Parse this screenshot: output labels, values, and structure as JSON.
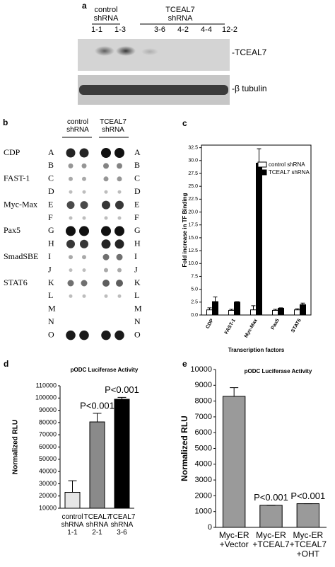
{
  "panel_a": {
    "label": "a",
    "control_group": "control\nshRNA",
    "tceal7_group": "TCEAL7\nshRNA",
    "lanes": [
      "1-1",
      "1-3",
      "3-6",
      "4-2",
      "4-4",
      "12-2"
    ],
    "blot_labels": [
      "-TCEAL7",
      "-β tubulin"
    ]
  },
  "panel_b": {
    "label": "b",
    "control_group": "control\nshRNA",
    "tceal7_group": "TCEAL7\nshRNA",
    "factors": [
      "CDP",
      "FAST-1",
      "Myc-Max",
      "Pax5",
      "SmadSBE",
      "STAT6"
    ],
    "rows": [
      "A",
      "B",
      "C",
      "D",
      "E",
      "F",
      "G",
      "H",
      "I",
      "J",
      "K",
      "L",
      "M",
      "N",
      "O"
    ]
  },
  "chart_data": [
    {
      "type": "bar",
      "panel": "c",
      "ylabel": "Fold increase in TF Binding",
      "xlabel": "Transcription factors",
      "categories": [
        "CDP",
        "FAST-1",
        "Myc-Max",
        "Pax5",
        "STAT6"
      ],
      "series": [
        {
          "name": "control shRNA",
          "color": "#ffffff",
          "values": [
            1.0,
            0.9,
            1.0,
            0.9,
            1.0
          ],
          "errors": [
            0.4,
            0.2,
            0.8,
            0.2,
            0.2
          ]
        },
        {
          "name": "TCEAL7 shRNA",
          "color": "#000000",
          "values": [
            2.6,
            2.5,
            29.5,
            1.3,
            2.0
          ],
          "errors": [
            0.9,
            0.1,
            2.8,
            0.1,
            0.3
          ]
        }
      ],
      "ylim": [
        0,
        33
      ],
      "yticks": [
        {
          "value": 0,
          "label": "0.0"
        },
        {
          "value": 2.5,
          "label": "2.5"
        },
        {
          "value": 5,
          "label": "5.0"
        },
        {
          "value": 7.5,
          "label": "7.5"
        },
        {
          "value": 10,
          "label": "10.0"
        },
        {
          "value": 12.5,
          "label": "12.5"
        },
        {
          "value": 15,
          "label": "15.0"
        },
        {
          "value": 17.5,
          "label": "17.5"
        },
        {
          "value": 20,
          "label": "20.0"
        },
        {
          "value": 22.5,
          "label": "22.5"
        },
        {
          "value": 25,
          "label": "25.0"
        },
        {
          "value": 27.5,
          "label": "27.5"
        },
        {
          "value": 30,
          "label": "30.0"
        },
        {
          "value": 32.5,
          "label": "32.5"
        }
      ],
      "legend": "top-right"
    },
    {
      "type": "bar",
      "panel": "d",
      "title": "pODC Luciferase Activity",
      "ylabel": "Normalized RLU",
      "categories": [
        "control\nshRNA\n1-1",
        "TCEAL7\nshRNA\n2-1",
        "TCEAL7\nshRNA\n3-6"
      ],
      "values": [
        23000,
        80500,
        99000
      ],
      "errors": [
        9500,
        7000,
        1500
      ],
      "colors": [
        "#e6e6e6",
        "#8a8a8a",
        "#000000"
      ],
      "annotations": [
        null,
        "P<0.001",
        "P<0.001"
      ],
      "ylim": [
        10000,
        110000
      ],
      "yticks": [
        10000,
        20000,
        30000,
        40000,
        50000,
        60000,
        70000,
        80000,
        90000,
        100000,
        110000
      ]
    },
    {
      "type": "bar",
      "panel": "e",
      "title": "pODC Luciferase Activity",
      "ylabel": "Normalized RLU",
      "categories": [
        "Myc-ER\n+Vector",
        "Myc-ER\n+TCEAL7",
        "Myc-ER\n+TCEAL7\n+OHT"
      ],
      "values": [
        8300,
        1400,
        1500
      ],
      "errors": [
        550,
        0,
        0
      ],
      "colors": [
        "#9a9a9a",
        "#9a9a9a",
        "#9a9a9a"
      ],
      "annotations": [
        null,
        "P<0.001",
        "P<0.001"
      ],
      "ylim": [
        0,
        10000
      ],
      "yticks": [
        0,
        1000,
        2000,
        3000,
        4000,
        5000,
        6000,
        7000,
        8000,
        9000,
        10000
      ]
    }
  ]
}
